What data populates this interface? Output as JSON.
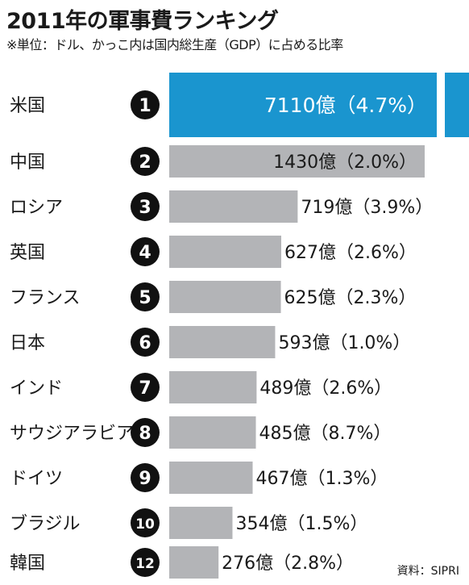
{
  "title": "2011年の軍事費ランキング",
  "subtitle": "※単位：ドル、かっこ内は国内総生産（GDP）に占める比率",
  "source": "資料：SIPRI",
  "colors": {
    "highlight": "#1a95cf",
    "bar": "#b3b4b7",
    "badge": "#111111"
  },
  "chart_data": {
    "type": "bar",
    "orientation": "horizontal",
    "unit": "億",
    "top_bar_truncated": true,
    "categories": [
      "米国",
      "中国",
      "ロシア",
      "英国",
      "フランス",
      "日本",
      "インド",
      "サウジアラビア",
      "ドイツ",
      "ブラジル",
      "韓国"
    ],
    "ranks": [
      "1",
      "2",
      "3",
      "4",
      "5",
      "6",
      "7",
      "8",
      "9",
      "10",
      "12"
    ],
    "values": [
      7110,
      1430,
      719,
      627,
      625,
      593,
      489,
      485,
      467,
      354,
      276
    ],
    "gdp_share_pct": [
      4.7,
      2.0,
      3.9,
      2.6,
      2.3,
      1.0,
      2.6,
      8.7,
      1.3,
      1.5,
      2.8
    ],
    "labels": [
      "7110億（4.7%）",
      "1430億（2.0%）",
      "719億（3.9%）",
      "627億（2.6%）",
      "625億（2.3%）",
      "593億（1.0%）",
      "489億（2.6%）",
      "485億（8.7%）",
      "467億（1.3%）",
      "354億（1.5%）",
      "276億（2.8%）"
    ]
  }
}
